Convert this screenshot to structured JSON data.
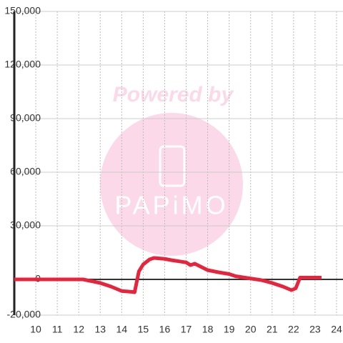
{
  "chart_data": {
    "type": "line",
    "watermark": {
      "top": "Powered by",
      "logo": "PAPiMO"
    },
    "xlim": [
      9,
      24.3
    ],
    "xticks": [
      10,
      11,
      12,
      13,
      14,
      15,
      16,
      17,
      18,
      19,
      20,
      21,
      22,
      23,
      24
    ],
    "ylim": [
      -20000,
      150000
    ],
    "yticks": [
      {
        "value": -20000,
        "label": "-20,000"
      },
      0,
      {
        "value": 30000,
        "label": "30,000"
      },
      {
        "value": 60000,
        "label": "60,000"
      },
      {
        "value": 90000,
        "label": "90,000"
      },
      {
        "value": 120000,
        "label": "120,000"
      },
      {
        "value": 150000,
        "label": "150,000"
      }
    ],
    "grid": true,
    "x": [
      9,
      12,
      12.2,
      13,
      13.5,
      14,
      14.5,
      14.6,
      14.8,
      15,
      15.3,
      15.5,
      16,
      16.3,
      17,
      17.2,
      17.4,
      18,
      18.5,
      19,
      19.3,
      20,
      20.5,
      21,
      21.5,
      21.9,
      22.1,
      22.3,
      23.3
    ],
    "series": [
      {
        "color": "#e8243c",
        "values": [
          0,
          0,
          0,
          -2000,
          -4000,
          -6500,
          -7000,
          -7200,
          4500,
          8400,
          11200,
          12000,
          11500,
          10800,
          9500,
          8000,
          8800,
          5200,
          4000,
          3000,
          1800,
          500,
          -400,
          -2000,
          -4000,
          -6000,
          -5000,
          1000,
          1000
        ]
      }
    ]
  }
}
